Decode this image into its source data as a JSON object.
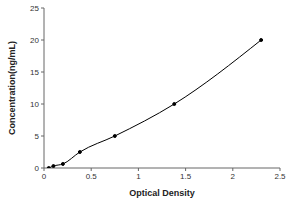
{
  "chart_data": {
    "type": "line",
    "x_label": "Optical Density",
    "y_label": "Concentration(ng/mL)",
    "x": [
      0.05,
      0.1,
      0.2,
      0.38,
      0.75,
      1.38,
      2.3
    ],
    "values": [
      0,
      0.31,
      0.63,
      2.5,
      5,
      10,
      20
    ],
    "color": "#000000",
    "marker": "circle",
    "xlim": [
      0,
      2.5
    ],
    "xticks": [
      0,
      0.5,
      1,
      1.5,
      2,
      2.5
    ],
    "ylim": [
      0,
      25
    ],
    "yticks": [
      0,
      5,
      10,
      15,
      20,
      25
    ]
  }
}
